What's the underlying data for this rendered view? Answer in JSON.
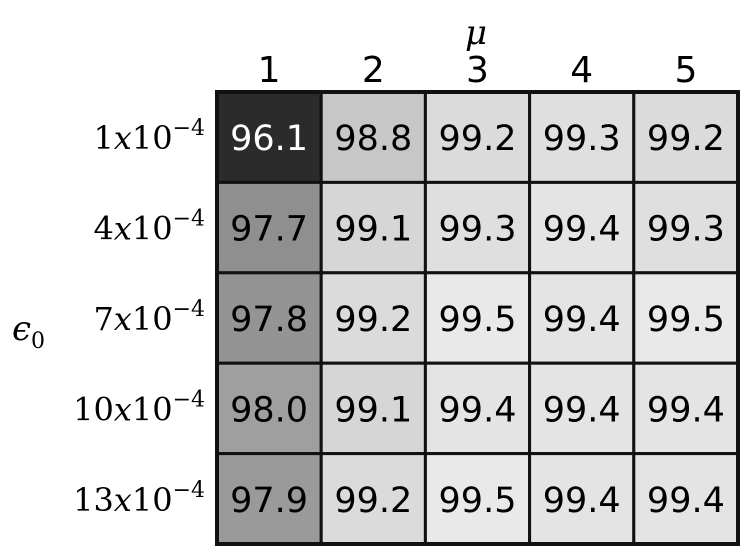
{
  "chart_data": {
    "type": "heatmap",
    "x_label": "μ",
    "y_label": "ϵ",
    "y_label_subscript": "0",
    "x_categories": [
      "1",
      "2",
      "3",
      "4",
      "5"
    ],
    "y_categories": [
      {
        "base": "1x10",
        "exp": "−4"
      },
      {
        "base": "4x10",
        "exp": "−4"
      },
      {
        "base": "7x10",
        "exp": "−4"
      },
      {
        "base": "10x10",
        "exp": "−4"
      },
      {
        "base": "13x10",
        "exp": "−4"
      }
    ],
    "values": [
      [
        96.1,
        98.8,
        99.2,
        99.3,
        99.2
      ],
      [
        97.7,
        99.1,
        99.3,
        99.4,
        99.3
      ],
      [
        97.8,
        99.2,
        99.5,
        99.4,
        99.5
      ],
      [
        98.0,
        99.1,
        99.4,
        99.4,
        99.4
      ],
      [
        97.9,
        99.2,
        99.5,
        99.4,
        99.4
      ]
    ],
    "value_range": [
      96.1,
      99.5
    ],
    "colors": {
      "low": "#2b2b2b",
      "high": "#e9e9e9",
      "border": "#111111"
    }
  }
}
